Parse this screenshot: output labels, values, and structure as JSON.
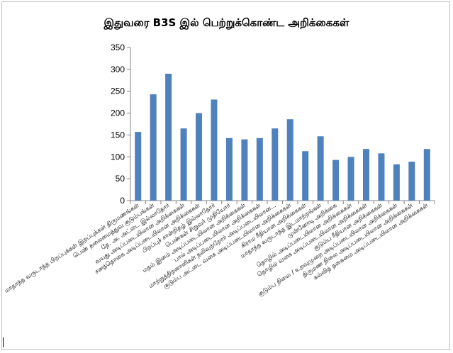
{
  "chart_data": {
    "type": "bar",
    "title": "இதுவரை B3S இல் பெற்றுக்கொண்ட அறிக்கைகள்",
    "xlabel": "",
    "ylabel": "",
    "ylim": [
      0,
      350
    ],
    "yticks": [
      0,
      50,
      100,
      150,
      200,
      250,
      300,
      350
    ],
    "grid": false,
    "legend": "none",
    "bar_color": "#4f81bd",
    "categories": [
      "மாதாந்த வருடாந்த பிறப்புக்கள் இறப்புக்கள் திருமணங்கள்",
      "பெண் தலைமைத்துவ குடும்பங்கள்",
      "தே. அ. அட்டை இல்லாதோர்",
      "வயது அடிப்படையிலான அறிக்கைகள்",
      "சனத்தொகை அடிப்படையிலான அறிக்கைகள்",
      "பிறப்புச் சான்றிதழ் இல்லாதோர்",
      "பெண்கள் சிறுவர் முதியோர்",
      "மதம் இனம் அடிப்படையிலான அறிக்கைகள்",
      "பால் அடிப்படையிலான அறிக்கைகள்",
      "மாற்றுத்திறனாளிகள் நலிவுற்றோர் அடிப்படையிலான...",
      "குடும்ப அட்டை வகை அடிப்படையிலான அறிக்கைகள்",
      "கிராம ரீதியான அறிக்கைகள்",
      "மாதாந்த வருடாந்த இடமாற்றங்கள்",
      "முன்னோடி அறிக்கை",
      "தொழில் அடிப்படையிலான அறிக்கைகள்",
      "தொழில் வகை அடிப்படையிலான அறிக்கைகள்",
      "குடும்ப ரீதியான அறிக்கைகள்",
      "குடும்ப நிலை / உறவுமுறை அடிப்படையிலான அறிக்கைகள்",
      "திருமண நிலை அடிப்படையிலான அறிக்கைகள்",
      "கல்வித் தகைமை அடிப்படையிலான அறிக்கைகள்"
    ],
    "values": [
      157,
      243,
      290,
      165,
      200,
      231,
      143,
      140,
      143,
      165,
      186,
      113,
      147,
      93,
      100,
      118,
      108,
      83,
      89,
      118
    ]
  }
}
